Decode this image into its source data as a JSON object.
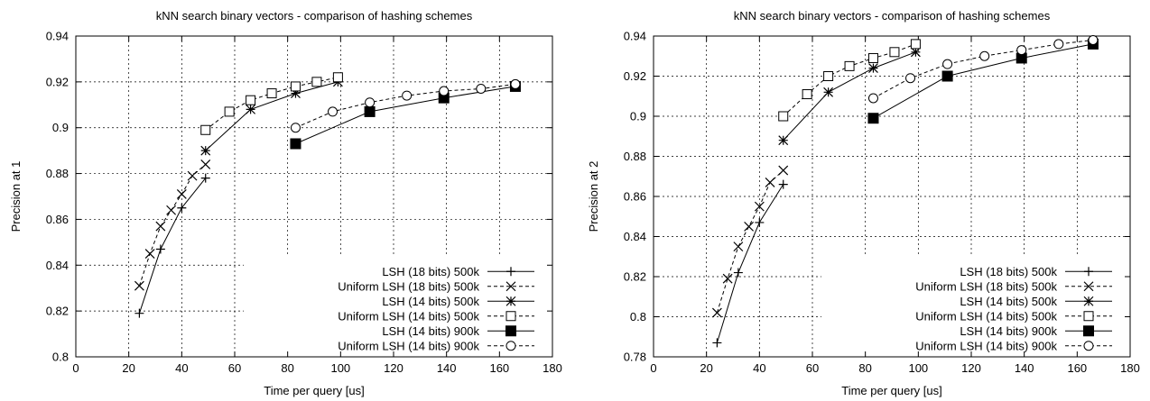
{
  "chart_data": [
    {
      "type": "line",
      "title": "kNN search binary vectors - comparison of hashing schemes",
      "xlabel": "Time per query [us]",
      "ylabel": "Precision at 1",
      "xlim": [
        0,
        180
      ],
      "ylim": [
        0.8,
        0.94
      ],
      "xticks": [
        0,
        20,
        40,
        60,
        80,
        100,
        120,
        140,
        160,
        180
      ],
      "yticks": [
        0.8,
        0.82,
        0.84,
        0.86,
        0.88,
        0.9,
        0.92,
        0.94
      ],
      "ytick_labels": [
        "0.8",
        "0.82",
        "0.84",
        "0.86",
        "0.88",
        "0.9",
        "0.92",
        "0.94"
      ],
      "grid": true,
      "legend_position": "bottom-right",
      "series": [
        {
          "name": "LSH (18 bits) 500k",
          "marker": "plus",
          "dash": "solid",
          "x": [
            24,
            32,
            40,
            49
          ],
          "y": [
            0.819,
            0.847,
            0.865,
            0.878
          ]
        },
        {
          "name": "Uniform LSH (18 bits) 500k",
          "marker": "cross",
          "dash": "dashed",
          "x": [
            24,
            28,
            32,
            36,
            40,
            44,
            49
          ],
          "y": [
            0.831,
            0.845,
            0.857,
            0.864,
            0.871,
            0.879,
            0.884
          ]
        },
        {
          "name": "LSH (14 bits) 500k",
          "marker": "star",
          "dash": "solid",
          "x": [
            49,
            66,
            83,
            99
          ],
          "y": [
            0.89,
            0.908,
            0.915,
            0.92
          ]
        },
        {
          "name": "Uniform LSH (14 bits) 500k",
          "marker": "square-open",
          "dash": "dashed",
          "x": [
            49,
            58,
            66,
            74,
            83,
            91,
            99
          ],
          "y": [
            0.899,
            0.907,
            0.912,
            0.915,
            0.918,
            0.92,
            0.922
          ]
        },
        {
          "name": "LSH (14 bits) 900k",
          "marker": "square-filled",
          "dash": "solid",
          "x": [
            83,
            111,
            139,
            166
          ],
          "y": [
            0.893,
            0.907,
            0.913,
            0.918
          ]
        },
        {
          "name": "Uniform LSH (14 bits) 900k",
          "marker": "circle-open",
          "dash": "dashed",
          "x": [
            83,
            97,
            111,
            125,
            139,
            153,
            166
          ],
          "y": [
            0.9,
            0.907,
            0.911,
            0.914,
            0.916,
            0.917,
            0.919
          ]
        }
      ]
    },
    {
      "type": "line",
      "title": "kNN search binary vectors - comparison of hashing schemes",
      "xlabel": "Time per query [us]",
      "ylabel": "Precision at 2",
      "xlim": [
        0,
        180
      ],
      "ylim": [
        0.78,
        0.94
      ],
      "xticks": [
        0,
        20,
        40,
        60,
        80,
        100,
        120,
        140,
        160,
        180
      ],
      "yticks": [
        0.78,
        0.8,
        0.82,
        0.84,
        0.86,
        0.88,
        0.9,
        0.92,
        0.94
      ],
      "ytick_labels": [
        "0.78",
        "0.8",
        "0.82",
        "0.84",
        "0.86",
        "0.88",
        "0.9",
        "0.92",
        "0.94"
      ],
      "grid": true,
      "legend_position": "bottom-right",
      "series": [
        {
          "name": "LSH (18 bits) 500k",
          "marker": "plus",
          "dash": "solid",
          "x": [
            24,
            32,
            40,
            49
          ],
          "y": [
            0.787,
            0.822,
            0.847,
            0.866
          ]
        },
        {
          "name": "Uniform LSH (18 bits) 500k",
          "marker": "cross",
          "dash": "dashed",
          "x": [
            24,
            28,
            32,
            36,
            40,
            44,
            49
          ],
          "y": [
            0.802,
            0.819,
            0.835,
            0.845,
            0.855,
            0.867,
            0.873
          ]
        },
        {
          "name": "LSH (14 bits) 500k",
          "marker": "star",
          "dash": "solid",
          "x": [
            49,
            66,
            83,
            99
          ],
          "y": [
            0.888,
            0.912,
            0.924,
            0.932
          ]
        },
        {
          "name": "Uniform LSH (14 bits) 500k",
          "marker": "square-open",
          "dash": "dashed",
          "x": [
            49,
            58,
            66,
            74,
            83,
            91,
            99
          ],
          "y": [
            0.9,
            0.911,
            0.92,
            0.925,
            0.929,
            0.932,
            0.936
          ]
        },
        {
          "name": "LSH (14 bits) 900k",
          "marker": "square-filled",
          "dash": "solid",
          "x": [
            83,
            111,
            139,
            166
          ],
          "y": [
            0.899,
            0.92,
            0.929,
            0.936
          ]
        },
        {
          "name": "Uniform LSH (14 bits) 900k",
          "marker": "circle-open",
          "dash": "dashed",
          "x": [
            83,
            97,
            111,
            125,
            139,
            153,
            166
          ],
          "y": [
            0.909,
            0.919,
            0.926,
            0.93,
            0.933,
            0.936,
            0.938
          ]
        }
      ]
    }
  ]
}
